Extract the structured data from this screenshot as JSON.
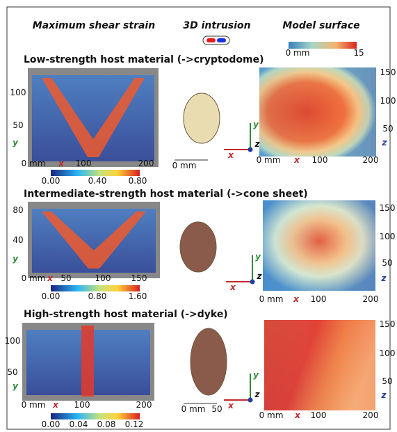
{
  "header": {
    "strain": "Maximum shear strain",
    "intrusion": "3D intrusion",
    "surface": "Model surface",
    "colorbar_ticks": [
      "0 mm",
      "15"
    ]
  },
  "rows": [
    {
      "title": "Low-strength host material (->cryptodome)",
      "strain": {
        "yticks": [
          "100",
          "50"
        ],
        "y_label": "y",
        "x_origin": "0 mm",
        "x_label": "x",
        "xticks": [
          "100",
          "200"
        ],
        "colorbar_ticks": [
          "0.00",
          "0.40",
          "0.80"
        ]
      },
      "intrusion": {
        "scale": [
          "0 mm"
        ],
        "axes": [
          "y",
          "x",
          "z"
        ]
      },
      "surface": {
        "yticks": [
          "150",
          "100",
          "50"
        ],
        "z_label": "z",
        "x_origin": "0 mm",
        "x_label": "x",
        "xticks": [
          "100",
          "200"
        ]
      }
    },
    {
      "title": "Intermediate-strength host material (->cone sheet)",
      "strain": {
        "yticks": [
          "80",
          "40"
        ],
        "y_label": "y",
        "x_origin": "0 mm",
        "x_label": "x",
        "xticks": [
          "50",
          "100",
          "150"
        ],
        "colorbar_ticks": [
          "0.00",
          "0.80",
          "1.60"
        ]
      },
      "intrusion": {
        "scale": [],
        "axes": [
          "y",
          "x",
          "z"
        ]
      },
      "surface": {
        "yticks": [
          "150",
          "100",
          "50"
        ],
        "z_label": "z",
        "x_origin": "0 mm",
        "x_label": "x",
        "xticks": [
          "100",
          "200"
        ]
      }
    },
    {
      "title": "High-strength host material (->dyke)",
      "strain": {
        "yticks": [
          "100",
          "50"
        ],
        "y_label": "y",
        "x_origin": "0 mm",
        "x_label": "x",
        "xticks": [
          "100",
          "200"
        ],
        "colorbar_ticks": [
          "0.00",
          "0.04",
          "0.08",
          "0.12"
        ]
      },
      "intrusion": {
        "scale": [
          "0 mm",
          "50"
        ],
        "axes": [
          "y",
          "x",
          "z"
        ]
      },
      "surface": {
        "yticks": [
          "150",
          "100",
          "50"
        ],
        "z_label": "z",
        "x_origin": "0 mm",
        "x_label": "x",
        "xticks": [
          "100",
          "200"
        ]
      }
    }
  ]
}
